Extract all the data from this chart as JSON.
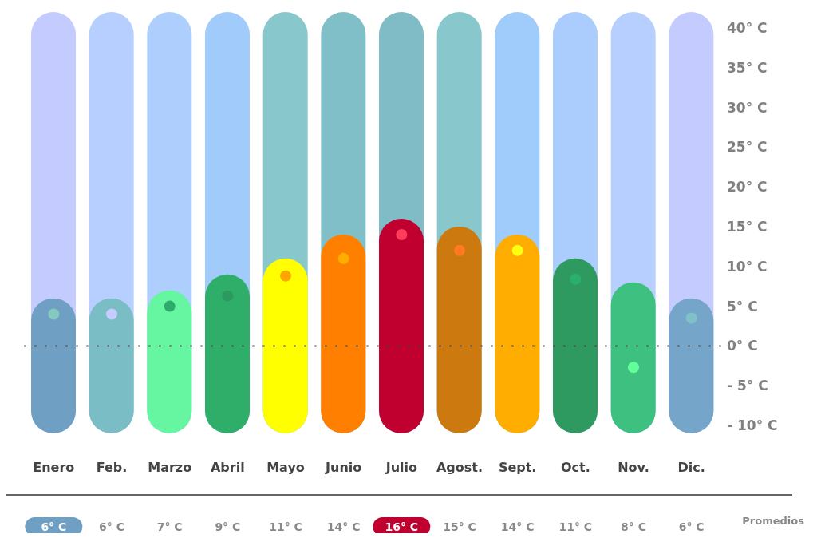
{
  "chart_data": {
    "type": "bar",
    "categories": [
      "Enero",
      "Feb.",
      "Marzo",
      "Abril",
      "Mayo",
      "Junio",
      "Julio",
      "Agost.",
      "Sept.",
      "Oct.",
      "Nov.",
      "Dic."
    ],
    "series": [
      {
        "colors": [
          "#c4ccff",
          "#b7cfff",
          "#aecffe",
          "#a0cbfa",
          "#88c8cc",
          "#80bfc8",
          "#7fbcc6",
          "#88c8cc",
          "#a0ccfc",
          "#aacdfd",
          "#b6cffe",
          "#c4ccff"
        ],
        "base": [
          -11,
          -11,
          -11,
          -11,
          -11,
          -11,
          -11,
          -11,
          -11,
          -11,
          -11,
          -11
        ],
        "values": [
          53,
          53,
          53,
          53,
          53,
          53,
          53,
          53,
          53,
          53,
          53,
          53
        ]
      },
      {
        "colors": [
          "#6fa0c4",
          "#7bbdc4",
          "#66f5a0",
          "#2eae68",
          "#ffff00",
          "#ff7f00",
          "#c0002e",
          "#cc7a10",
          "#ffad00",
          "#2f9a60",
          "#3dc080",
          "#75a5c8"
        ],
        "base": [
          -11,
          -11,
          -11,
          -11,
          -11,
          -11,
          -11,
          -11,
          -11,
          -11,
          -11,
          -11
        ],
        "values": [
          17,
          17,
          18,
          20,
          22,
          25,
          27,
          26,
          25,
          22,
          19,
          17
        ]
      },
      {
        "type": "scatter",
        "colors": [
          "#86c9c0",
          "#c5ccff",
          "#2eaa6a",
          "#2a9a60",
          "#ffa500",
          "#ffae00",
          "#ff3c5c",
          "#ff7a20",
          "#ffff10",
          "#2ab06a",
          "#60ff98",
          "#80c0c8"
        ],
        "values": [
          4,
          4,
          5,
          6.3,
          8.8,
          11,
          14,
          12,
          12,
          8.4,
          -2.7,
          3.5
        ]
      }
    ],
    "ylim": [
      -11,
      42
    ],
    "yticks": [
      {
        "value": -10,
        "label": "- 10° C"
      },
      {
        "value": -5,
        "label": "- 5° C"
      },
      {
        "value": 0,
        "label": "0° C"
      },
      {
        "value": 5,
        "label": "5° C"
      },
      {
        "value": 10,
        "label": "10° C"
      },
      {
        "value": 15,
        "label": "15° C"
      },
      {
        "value": 20,
        "label": "20° C"
      },
      {
        "value": 25,
        "label": "25° C"
      },
      {
        "value": 30,
        "label": "30° C"
      },
      {
        "value": 35,
        "label": "35° C"
      },
      {
        "value": 40,
        "label": "40° C"
      }
    ],
    "ref_lines": [
      {
        "axis": "y",
        "value": 0,
        "color": "#444444",
        "line_style": "dotted"
      }
    ],
    "marker": "circle",
    "grid": false,
    "legend": false,
    "annotations": [
      "6° C",
      "6° C",
      "7° C",
      "9° C",
      "11° C",
      "14° C",
      "16° C",
      "15° C",
      "14° C",
      "11° C",
      "8° C",
      "6° C",
      "Promedios"
    ]
  }
}
